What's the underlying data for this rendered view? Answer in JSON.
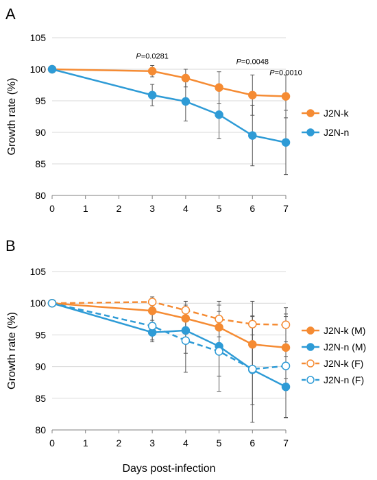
{
  "chart_data": [
    {
      "panel": "A",
      "type": "line",
      "ylabel": "Growth rate (%)",
      "xlabel": "",
      "xlim": [
        0,
        7
      ],
      "ylim": [
        80,
        105
      ],
      "xticks": [
        0,
        1,
        2,
        3,
        4,
        5,
        6,
        7
      ],
      "yticks": [
        80,
        85,
        90,
        95,
        100,
        105
      ],
      "grid": "horizontal",
      "legend": "right",
      "series": [
        {
          "name": "J2N-k",
          "color": "#f58b33",
          "marker": "filled",
          "dash": false,
          "x": [
            0,
            3,
            4,
            5,
            6,
            7
          ],
          "y": [
            100,
            99.7,
            98.6,
            97.1,
            95.9,
            95.7
          ],
          "err": [
            0,
            0.9,
            1.4,
            2.5,
            3.2,
            3.4
          ]
        },
        {
          "name": "J2N-n",
          "color": "#2e9bd6",
          "marker": "filled",
          "dash": false,
          "x": [
            0,
            3,
            4,
            5,
            6,
            7
          ],
          "y": [
            100,
            95.9,
            94.9,
            92.8,
            89.5,
            88.4
          ],
          "err": [
            0,
            1.7,
            3.1,
            3.8,
            4.8,
            5.1
          ]
        }
      ],
      "annotations": [
        {
          "x": 3,
          "y": 101.7,
          "italic": "P",
          "text": "=0.0281"
        },
        {
          "x": 6,
          "y": 100.8,
          "italic": "P",
          "text": "=0.0048"
        },
        {
          "x": 7,
          "y": 99.1,
          "italic": "P",
          "text": "=0.0010"
        }
      ]
    },
    {
      "panel": "B",
      "type": "line",
      "ylabel": "Growth rate (%)",
      "xlabel": "Days post-infection",
      "xlim": [
        0,
        7
      ],
      "ylim": [
        80,
        105
      ],
      "xticks": [
        0,
        1,
        2,
        3,
        4,
        5,
        6,
        7
      ],
      "yticks": [
        80,
        85,
        90,
        95,
        100,
        105
      ],
      "grid": "horizontal",
      "legend": "right",
      "series": [
        {
          "name": "J2N-k (M)",
          "color": "#f58b33",
          "marker": "filled",
          "dash": false,
          "x": [
            0,
            3,
            4,
            5,
            6,
            7
          ],
          "y": [
            100,
            98.8,
            97.6,
            96.2,
            93.5,
            93.0
          ],
          "err": [
            0,
            1.5,
            2.1,
            3.5,
            4.4,
            4.9
          ]
        },
        {
          "name": "J2N-n (M)",
          "color": "#2e9bd6",
          "marker": "filled",
          "dash": false,
          "x": [
            0,
            3,
            4,
            5,
            6,
            7
          ],
          "y": [
            100,
            95.4,
            95.7,
            93.2,
            89.5,
            86.8
          ],
          "err": [
            0,
            1.5,
            3.6,
            4.7,
            5.5,
            4.8
          ]
        },
        {
          "name": "J2N-k (F)",
          "color": "#f58b33",
          "marker": "open",
          "dash": true,
          "x": [
            0,
            3,
            4,
            5,
            6,
            7
          ],
          "y": [
            100,
            100.2,
            98.9,
            97.5,
            96.7,
            96.6
          ],
          "err": [
            0,
            0.8,
            1.4,
            2.8,
            3.6,
            2.7
          ]
        },
        {
          "name": "J2N-n (F)",
          "color": "#2e9bd6",
          "marker": "open",
          "dash": true,
          "x": [
            0,
            3,
            4,
            5,
            6,
            7
          ],
          "y": [
            100,
            96.4,
            94.1,
            92.4,
            89.6,
            90.1
          ],
          "err": [
            0,
            2.2,
            5.0,
            6.3,
            8.4,
            8.2
          ]
        }
      ],
      "annotations": []
    }
  ]
}
